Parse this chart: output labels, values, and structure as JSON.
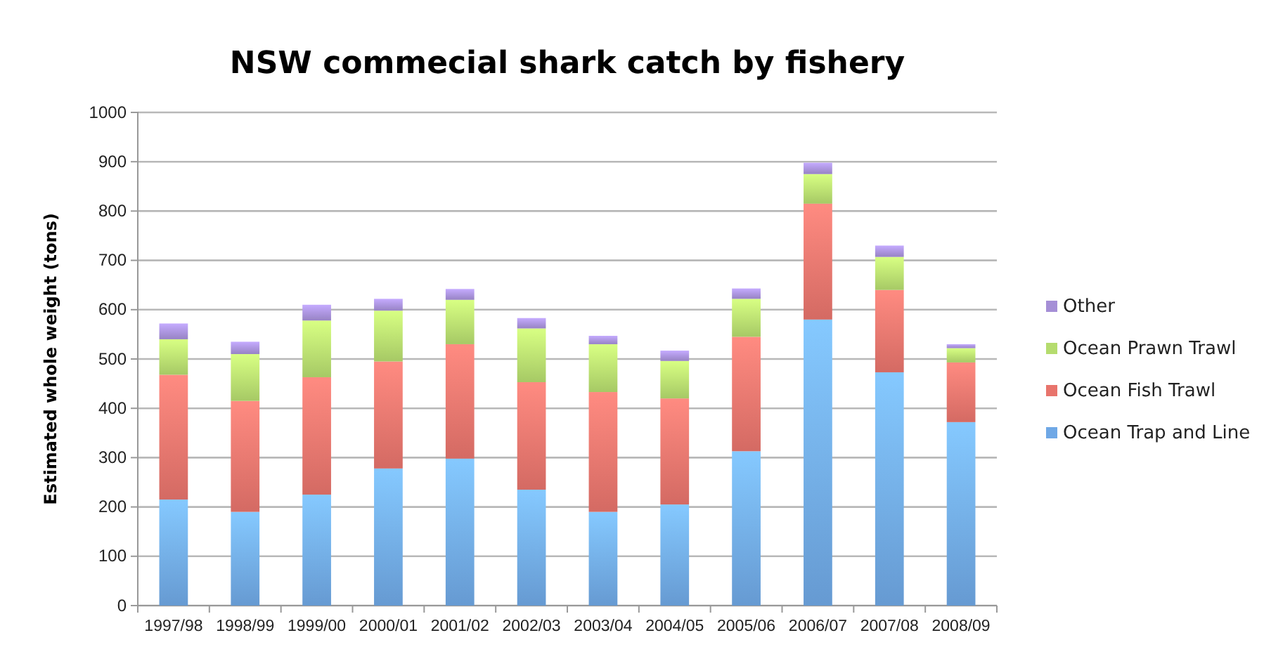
{
  "chart_data": {
    "type": "bar",
    "title": "NSW commecial shark catch by fishery",
    "ylabel": "Estimated whole weight (tons)",
    "categories": [
      "1997/98",
      "1998/99",
      "1999/00",
      "2000/01",
      "2001/02",
      "2002/03",
      "2003/04",
      "2004/05",
      "2005/06",
      "2006/07",
      "2007/08",
      "2008/09"
    ],
    "stacked": true,
    "ylim": [
      0,
      1000
    ],
    "yticks": [
      0,
      100,
      200,
      300,
      400,
      500,
      600,
      700,
      800,
      900,
      1000
    ],
    "grid": "y",
    "legend": "right",
    "series": [
      {
        "name": "Ocean Trap and Line",
        "color": "#6fa8e6",
        "values": [
          215,
          190,
          225,
          278,
          298,
          235,
          190,
          205,
          313,
          580,
          473,
          372
        ]
      },
      {
        "name": "Ocean Fish Trawl",
        "color": "#e8746c",
        "values": [
          253,
          225,
          238,
          217,
          232,
          218,
          243,
          215,
          232,
          235,
          167,
          121
        ]
      },
      {
        "name": "Ocean Prawn Trawl",
        "color": "#b5dc6e",
        "values": [
          72,
          95,
          115,
          103,
          90,
          109,
          97,
          76,
          77,
          60,
          67,
          29
        ]
      },
      {
        "name": "Other",
        "color": "#a58fd6",
        "values": [
          32,
          25,
          32,
          24,
          22,
          21,
          17,
          21,
          21,
          23,
          23,
          8
        ]
      }
    ]
  }
}
